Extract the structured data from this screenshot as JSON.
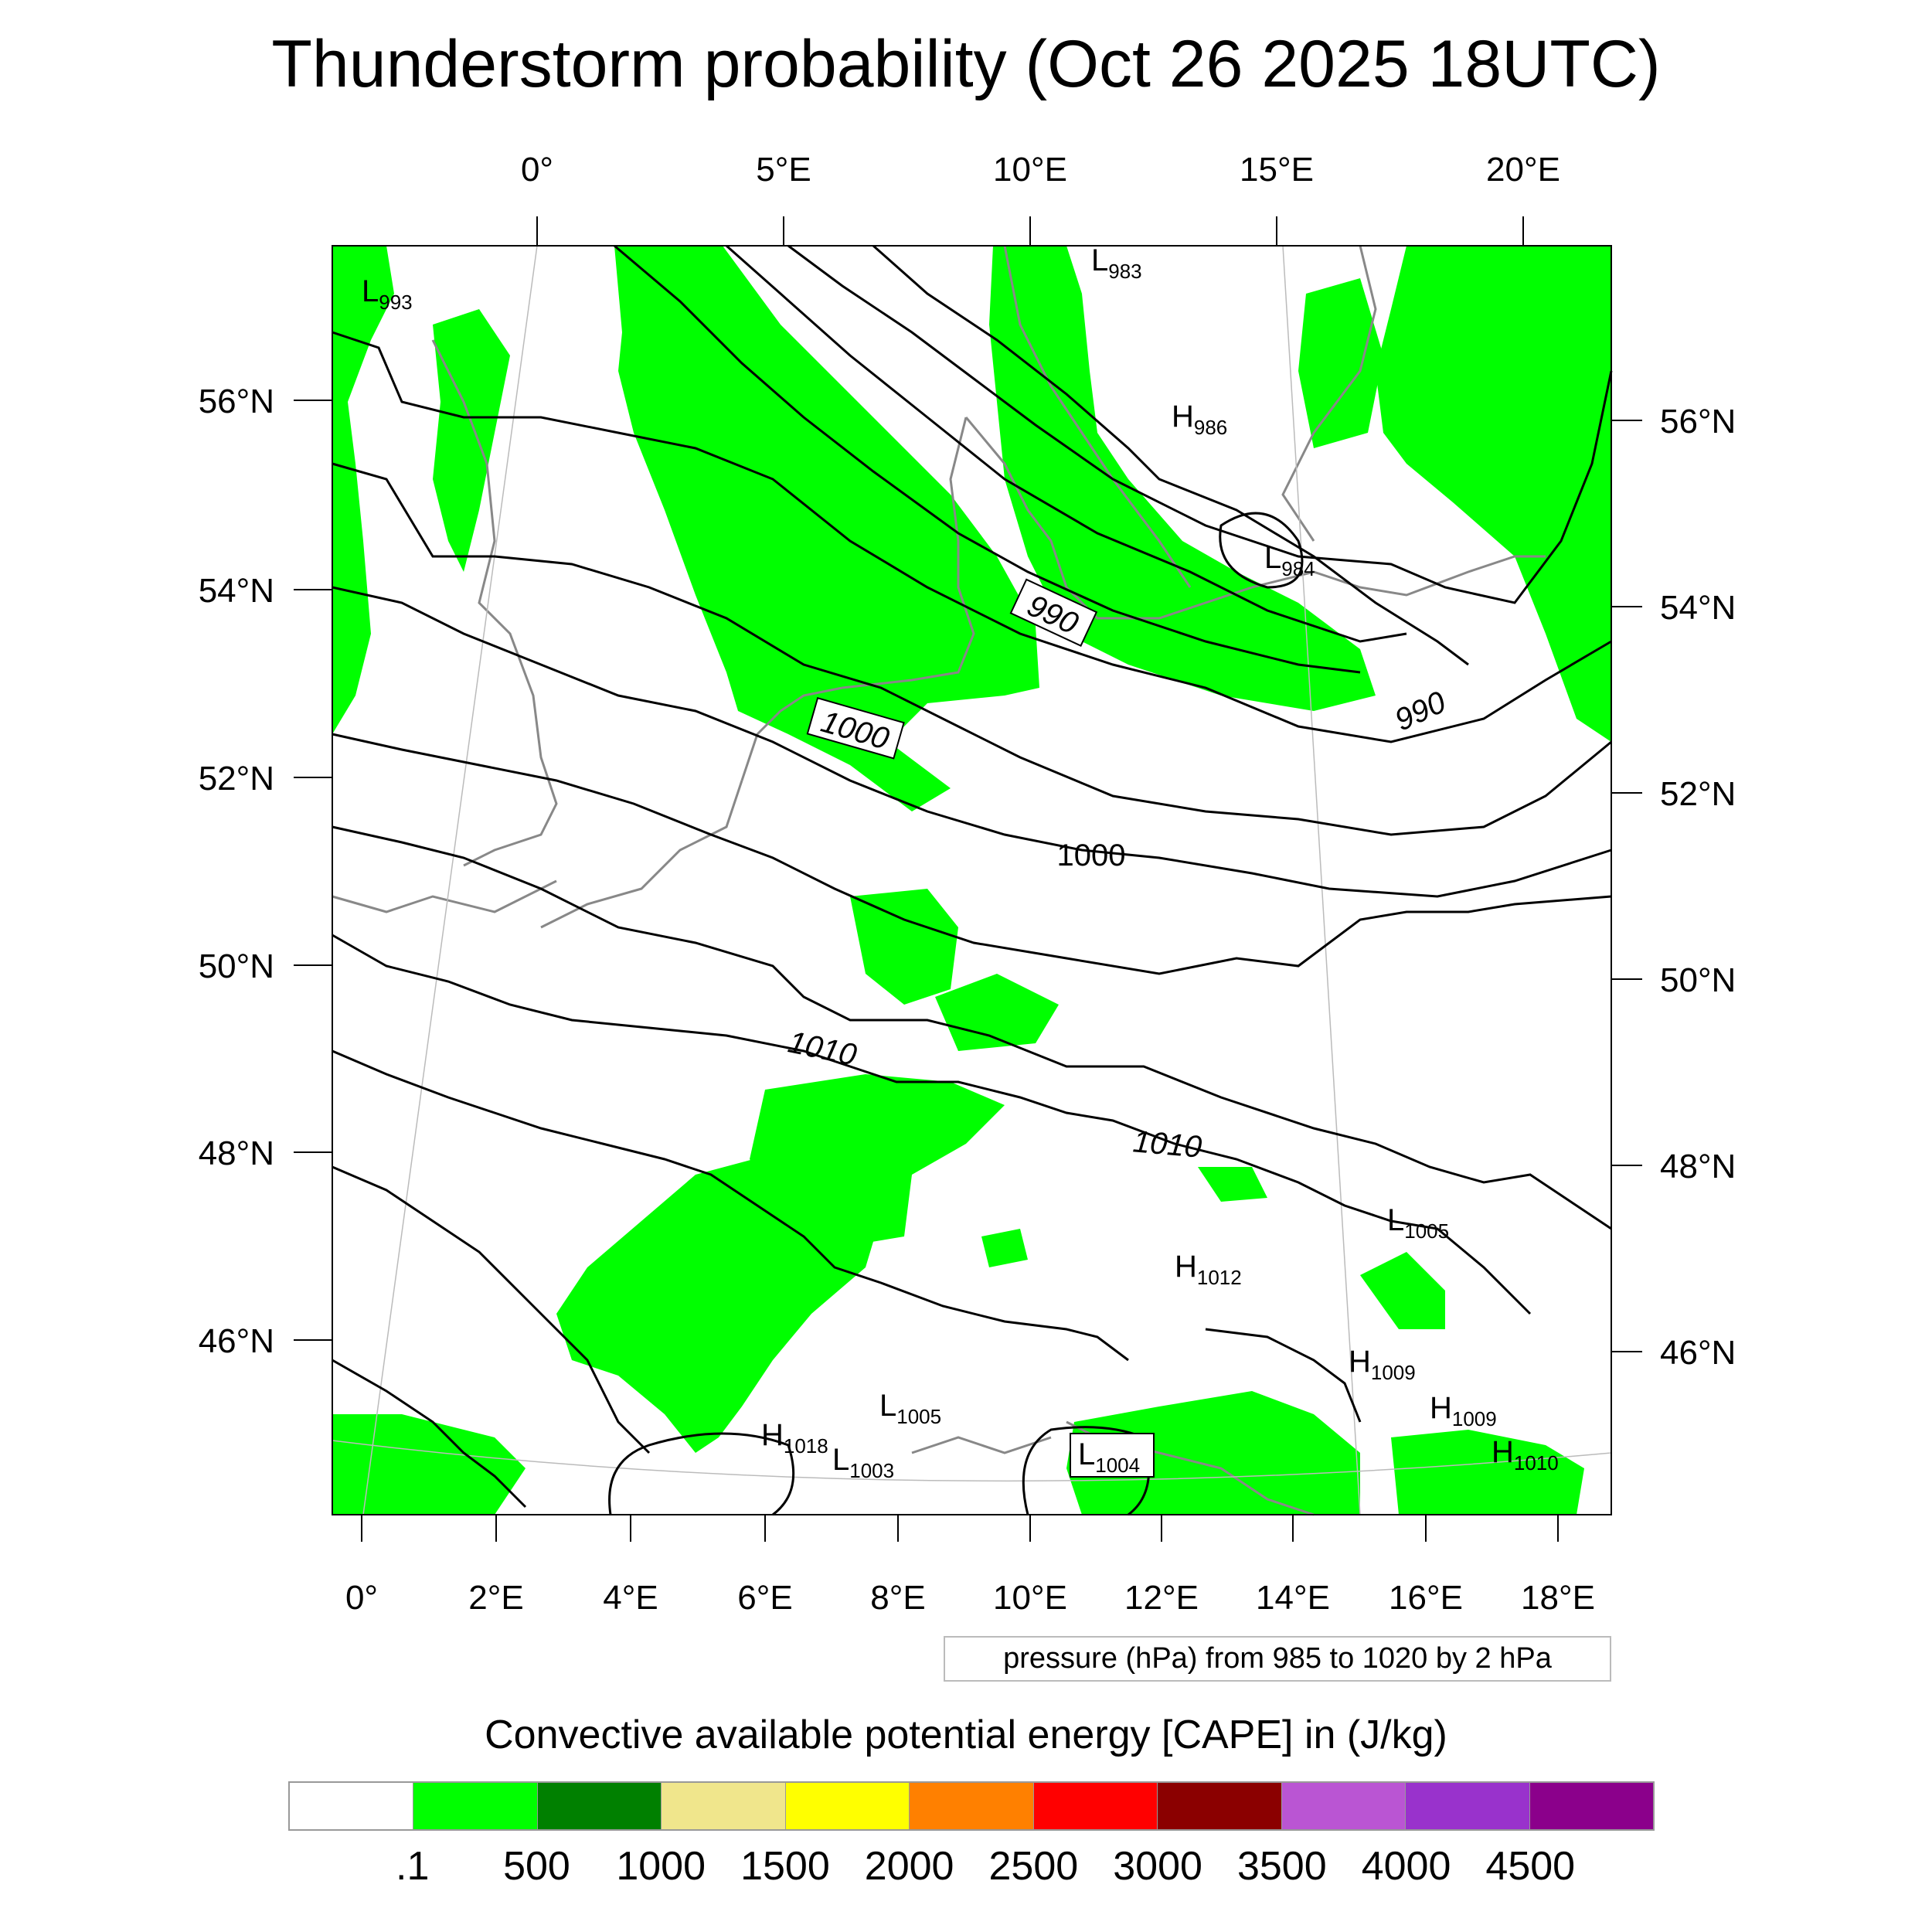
{
  "title": "Thunderstorm probability (Oct 26 2025 18UTC)",
  "top_lon_labels": [
    "0°",
    "5°E",
    "10°E",
    "15°E",
    "20°E"
  ],
  "bottom_lon_labels": [
    "0°",
    "2°E",
    "4°E",
    "6°E",
    "8°E",
    "10°E",
    "12°E",
    "14°E",
    "16°E",
    "18°E"
  ],
  "left_lat_labels": [
    "56°N",
    "54°N",
    "52°N",
    "50°N",
    "48°N",
    "46°N"
  ],
  "right_lat_labels": [
    "56°N",
    "54°N",
    "52°N",
    "50°N",
    "48°N",
    "46°N"
  ],
  "isobar_labels": [
    "990",
    "990",
    "1000",
    "1000",
    "1010",
    "1010"
  ],
  "pressure_centers": [
    {
      "type": "L",
      "value": "993"
    },
    {
      "type": "L",
      "value": "983"
    },
    {
      "type": "H",
      "value": "986"
    },
    {
      "type": "L",
      "value": "984"
    },
    {
      "type": "L",
      "value": "1005"
    },
    {
      "type": "H",
      "value": "1012"
    },
    {
      "type": "H",
      "value": "1009"
    },
    {
      "type": "H",
      "value": "1009"
    },
    {
      "type": "H",
      "value": "1010"
    },
    {
      "type": "L",
      "value": "1005"
    },
    {
      "type": "H",
      "value": "1018"
    },
    {
      "type": "L",
      "value": "1003"
    },
    {
      "type": "L",
      "value": "1004"
    }
  ],
  "pressure_note": "pressure (hPa) from 985 to 1020 by 2 hPa",
  "colorbar": {
    "title": "Convective available potential energy [CAPE] in (J/kg)",
    "labels": [
      ".1",
      "500",
      "1000",
      "1500",
      "2000",
      "2500",
      "3000",
      "3500",
      "4000",
      "4500"
    ],
    "colors": [
      "#ffffff",
      "#00ff00",
      "#008000",
      "#f0e68c",
      "#ffff00",
      "#ff8000",
      "#ff0000",
      "#8b0000",
      "#ba55d3",
      "#9932cc",
      "#8b008b"
    ]
  },
  "cape_fill_color": "#00ff00"
}
